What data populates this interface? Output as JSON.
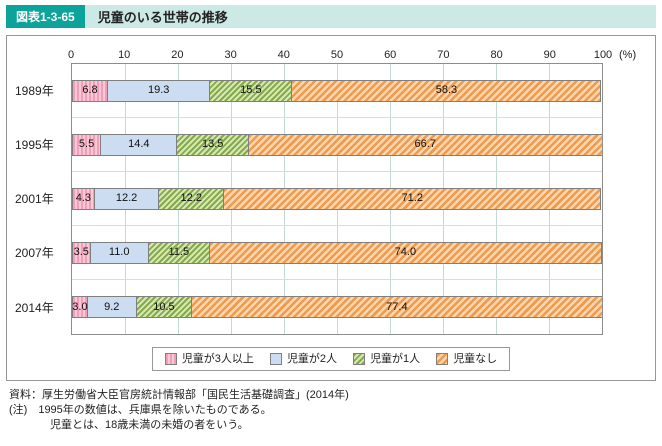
{
  "header": {
    "badge": "図表1-3-65",
    "title": "児童のいる世帯の推移"
  },
  "chart_data": {
    "type": "bar",
    "stacked": true,
    "orientation": "horizontal",
    "unit_label": "(%)",
    "xlim": [
      0,
      100
    ],
    "axis_ticks": [
      0,
      10,
      20,
      30,
      40,
      50,
      60,
      70,
      80,
      90,
      100
    ],
    "categories": [
      "1989年",
      "1995年",
      "2001年",
      "2007年",
      "2014年"
    ],
    "series": [
      {
        "name": "児童が3人以上",
        "color": "#f29eb9",
        "values": [
          6.8,
          5.5,
          4.3,
          3.5,
          3.0
        ]
      },
      {
        "name": "児童が2人",
        "color": "#ccdcf1",
        "values": [
          19.3,
          14.4,
          12.2,
          11.0,
          9.2
        ]
      },
      {
        "name": "児童が1人",
        "color": "#84ac45",
        "values": [
          15.5,
          13.5,
          12.2,
          11.5,
          10.5
        ]
      },
      {
        "name": "児童なし",
        "color": "#f09a4d",
        "values": [
          58.3,
          66.7,
          71.2,
          74.0,
          77.4
        ]
      }
    ],
    "legend_position": "bottom",
    "grid": true
  },
  "footer": {
    "source": "資料：厚生労働省大臣官房統計情報部「国民生活基礎調査」(2014年)",
    "note1": "(注)　1995年の数値は、兵庫県を除いたものである。",
    "note2": "児童とは、18歳未満の未婚の者をいう。"
  }
}
